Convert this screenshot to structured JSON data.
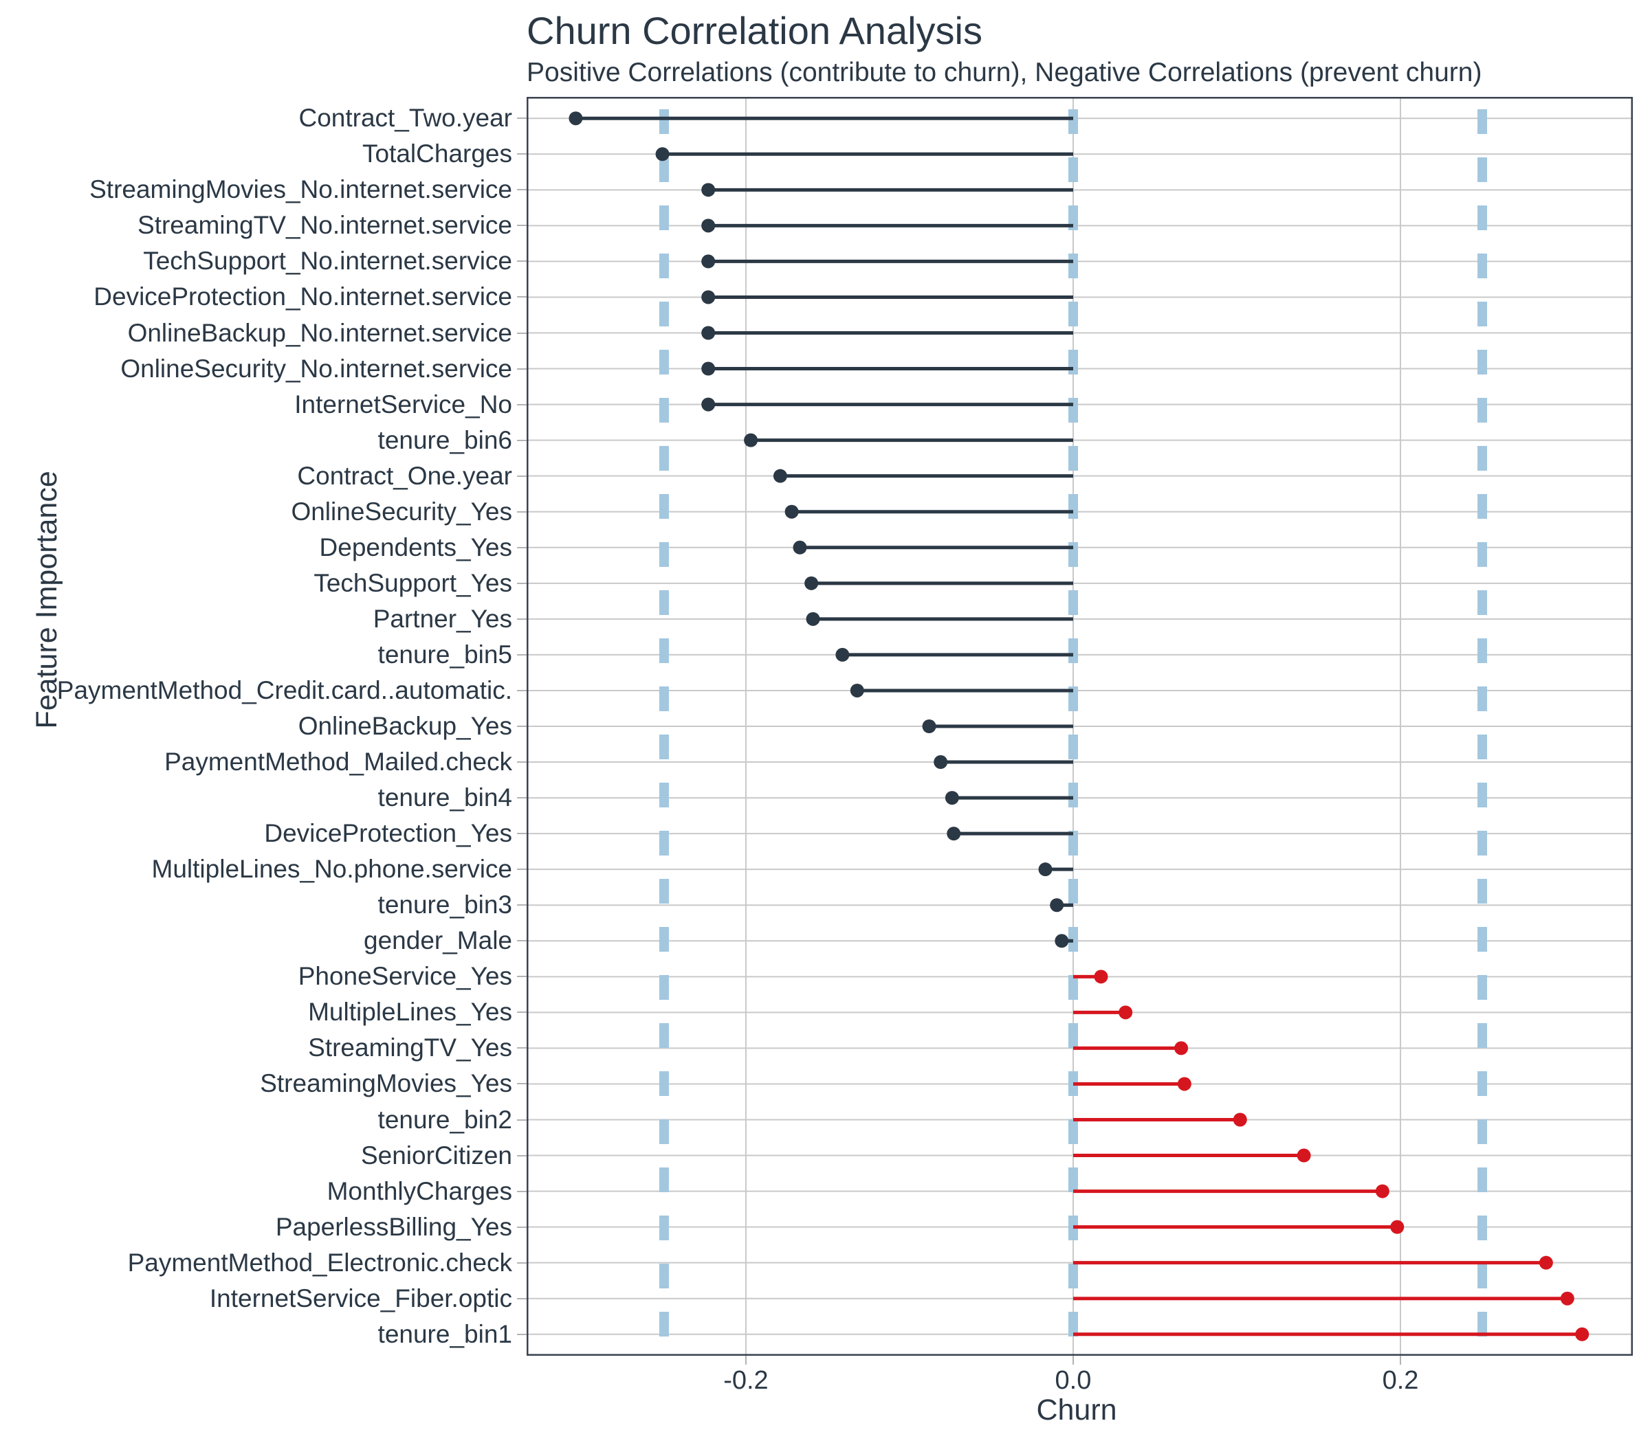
{
  "chart_data": {
    "type": "lollipop",
    "title": "Churn Correlation Analysis",
    "subtitle": "Positive Correlations (contribute to churn), Negative Correlations (prevent churn)",
    "xlabel": "Churn",
    "ylabel": "Feature Importance",
    "xlim": [
      -0.334,
      0.342
    ],
    "grid": true,
    "legend_position": "none",
    "x_ticks": [
      {
        "value": -0.2,
        "label": "-0.2"
      },
      {
        "value": 0.0,
        "label": "0.0"
      },
      {
        "value": 0.2,
        "label": "0.2"
      }
    ],
    "reference_lines": [
      {
        "value": -0.25
      },
      {
        "value": 0.0
      },
      {
        "value": 0.25
      }
    ],
    "features": [
      {
        "label": "Contract_Two.year",
        "value": -0.304
      },
      {
        "label": "TotalCharges",
        "value": -0.251
      },
      {
        "label": "StreamingMovies_No.internet.service",
        "value": -0.223
      },
      {
        "label": "StreamingTV_No.internet.service",
        "value": -0.223
      },
      {
        "label": "TechSupport_No.internet.service",
        "value": -0.223
      },
      {
        "label": "DeviceProtection_No.internet.service",
        "value": -0.223
      },
      {
        "label": "OnlineBackup_No.internet.service",
        "value": -0.223
      },
      {
        "label": "OnlineSecurity_No.internet.service",
        "value": -0.223
      },
      {
        "label": "InternetService_No",
        "value": -0.223
      },
      {
        "label": "tenure_bin6",
        "value": -0.197
      },
      {
        "label": "Contract_One.year",
        "value": -0.179
      },
      {
        "label": "OnlineSecurity_Yes",
        "value": -0.172
      },
      {
        "label": "Dependents_Yes",
        "value": -0.167
      },
      {
        "label": "TechSupport_Yes",
        "value": -0.16
      },
      {
        "label": "Partner_Yes",
        "value": -0.159
      },
      {
        "label": "tenure_bin5",
        "value": -0.141
      },
      {
        "label": "PaymentMethod_Credit.card..automatic.",
        "value": -0.132
      },
      {
        "label": "OnlineBackup_Yes",
        "value": -0.088
      },
      {
        "label": "PaymentMethod_Mailed.check",
        "value": -0.081
      },
      {
        "label": "tenure_bin4",
        "value": -0.074
      },
      {
        "label": "DeviceProtection_Yes",
        "value": -0.073
      },
      {
        "label": "MultipleLines_No.phone.service",
        "value": -0.017
      },
      {
        "label": "tenure_bin3",
        "value": -0.01
      },
      {
        "label": "gender_Male",
        "value": -0.007
      },
      {
        "label": "PhoneService_Yes",
        "value": 0.017
      },
      {
        "label": "MultipleLines_Yes",
        "value": 0.032
      },
      {
        "label": "StreamingTV_Yes",
        "value": 0.066
      },
      {
        "label": "StreamingMovies_Yes",
        "value": 0.068
      },
      {
        "label": "tenure_bin2",
        "value": 0.102
      },
      {
        "label": "SeniorCitizen",
        "value": 0.141
      },
      {
        "label": "MonthlyCharges",
        "value": 0.189
      },
      {
        "label": "PaperlessBilling_Yes",
        "value": 0.198
      },
      {
        "label": "PaymentMethod_Electronic.check",
        "value": 0.289
      },
      {
        "label": "InternetService_Fiber.optic",
        "value": 0.302
      },
      {
        "label": "tenure_bin1",
        "value": 0.311
      }
    ],
    "colors": {
      "negative": "#2B3845",
      "positive": "#D6161F",
      "reference_line": "#A3C7DF",
      "grid": "#C9C9C9",
      "panel_border": "#39424E",
      "text": "#2B3845",
      "tick_mark": "#B3B3B3",
      "background": "#FFFFFF"
    }
  }
}
